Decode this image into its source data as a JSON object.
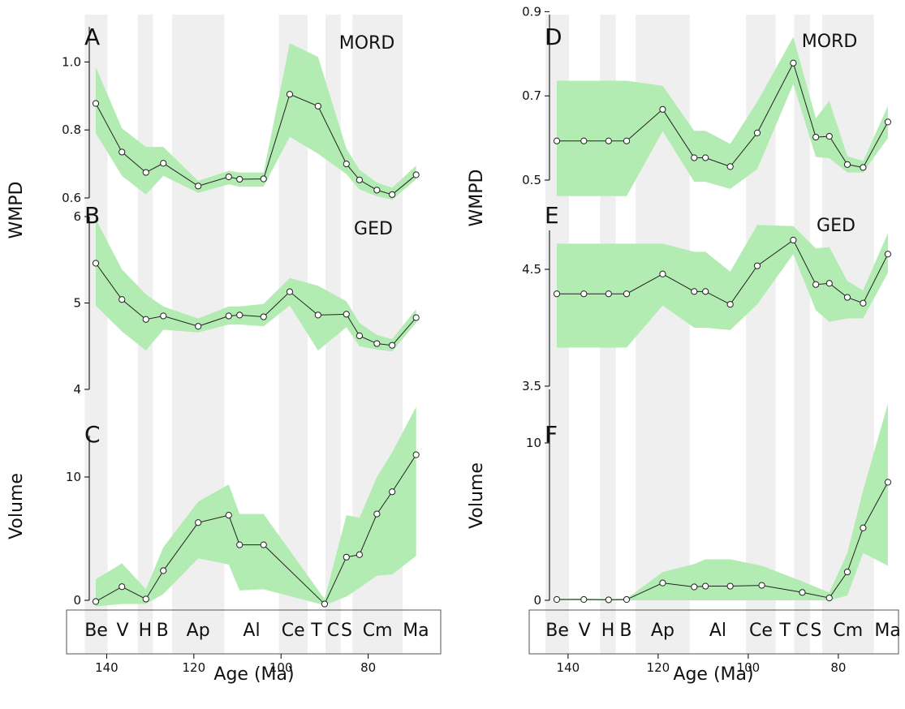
{
  "stages": [
    {
      "label": "Be",
      "start": 145,
      "end": 139.8,
      "shade": true
    },
    {
      "label": "V",
      "start": 139.8,
      "end": 132.9,
      "shade": false
    },
    {
      "label": "H",
      "start": 132.9,
      "end": 129.4,
      "shade": true
    },
    {
      "label": "B",
      "start": 129.4,
      "end": 125.0,
      "shade": false
    },
    {
      "label": "Ap",
      "start": 125.0,
      "end": 113.0,
      "shade": true
    },
    {
      "label": "Al",
      "start": 113.0,
      "end": 100.5,
      "shade": false
    },
    {
      "label": "Ce",
      "start": 100.5,
      "end": 93.9,
      "shade": true
    },
    {
      "label": "T",
      "start": 93.9,
      "end": 89.8,
      "shade": false
    },
    {
      "label": "C",
      "start": 89.8,
      "end": 86.3,
      "shade": true
    },
    {
      "label": "S",
      "start": 86.3,
      "end": 83.6,
      "shade": false
    },
    {
      "label": "Cm",
      "start": 83.6,
      "end": 72.1,
      "shade": true
    },
    {
      "label": "Ma",
      "start": 72.1,
      "end": 66.0,
      "shade": false
    }
  ],
  "colors": {
    "band": "#b3ecb3",
    "shade": "#efefef",
    "line": "#222222"
  },
  "chart_data": [
    {
      "id": "A",
      "type": "line",
      "panel_letter": "A",
      "annotation": "MORD",
      "ylim": [
        0.6,
        1.1
      ],
      "yticks": [
        "0.6",
        "0.8",
        "1.0"
      ],
      "x": [
        142.5,
        136.5,
        131,
        127,
        119,
        112,
        109.5,
        104,
        98,
        91.5,
        85,
        82,
        78,
        74.5,
        69
      ],
      "y": [
        0.878,
        0.735,
        0.675,
        0.702,
        0.635,
        0.662,
        0.655,
        0.656,
        0.905,
        0.87,
        0.7,
        0.653,
        0.623,
        0.61,
        0.668
      ],
      "lower": [
        0.79,
        0.665,
        0.61,
        0.665,
        0.615,
        0.64,
        0.633,
        0.633,
        0.78,
        0.73,
        0.67,
        0.625,
        0.605,
        0.595,
        0.655
      ],
      "upper": [
        0.985,
        0.805,
        0.75,
        0.75,
        0.65,
        0.68,
        0.675,
        0.675,
        1.055,
        1.015,
        0.745,
        0.683,
        0.645,
        0.63,
        0.695
      ]
    },
    {
      "id": "B",
      "type": "line",
      "panel_letter": "B",
      "annotation": "GED",
      "ylim": [
        4,
        6
      ],
      "yticks": [
        "4",
        "5",
        "6"
      ],
      "x": [
        142.5,
        136.5,
        131,
        127,
        119,
        112,
        109.5,
        104,
        98,
        91.5,
        85,
        82,
        78,
        74.5,
        69
      ],
      "y": [
        5.46,
        5.04,
        4.81,
        4.85,
        4.73,
        4.85,
        4.86,
        4.84,
        5.13,
        4.86,
        4.87,
        4.62,
        4.53,
        4.51,
        4.83
      ],
      "lower": [
        4.97,
        4.67,
        4.45,
        4.69,
        4.66,
        4.75,
        4.75,
        4.73,
        4.97,
        4.45,
        4.72,
        4.5,
        4.46,
        4.44,
        4.77
      ],
      "upper": [
        5.97,
        5.39,
        5.1,
        4.96,
        4.82,
        4.96,
        4.96,
        4.99,
        5.29,
        5.2,
        5.02,
        4.77,
        4.63,
        4.58,
        4.93
      ]
    },
    {
      "id": "C",
      "type": "line",
      "panel_letter": "C",
      "annotation": "",
      "ylim": [
        -0.5,
        13.5
      ],
      "yticks": [
        "0",
        "10"
      ],
      "x": [
        142.5,
        136.5,
        131,
        127,
        119,
        112,
        109.5,
        104,
        90,
        85,
        82,
        78,
        74.5,
        69
      ],
      "y": [
        -0.1,
        1.1,
        0.1,
        2.4,
        6.3,
        6.9,
        4.5,
        4.5,
        -0.3,
        3.5,
        3.7,
        7.0,
        8.8,
        11.8
      ],
      "lower": [
        -0.5,
        -0.3,
        -0.3,
        0.5,
        3.4,
        2.9,
        0.8,
        0.9,
        -0.4,
        0.3,
        1.0,
        2.0,
        2.1,
        3.6
      ],
      "upper": [
        1.7,
        3.0,
        0.9,
        4.3,
        8.0,
        9.4,
        7.0,
        7.0,
        0.1,
        6.9,
        6.7,
        10.0,
        12.0,
        15.7
      ]
    },
    {
      "id": "D",
      "type": "line",
      "panel_letter": "D",
      "annotation": "MORD",
      "ylim": [
        0.46,
        0.9
      ],
      "yticks": [
        "0.5",
        "0.7",
        "0.9"
      ],
      "x": [
        142.5,
        136.5,
        131,
        127,
        119,
        112,
        109.5,
        104,
        98,
        90,
        85,
        82,
        78,
        74.5,
        69
      ],
      "y": [
        0.593,
        0.593,
        0.593,
        0.593,
        0.668,
        0.553,
        0.553,
        0.532,
        0.612,
        0.778,
        0.602,
        0.604,
        0.537,
        0.53,
        0.638
      ],
      "lower": [
        0.462,
        0.462,
        0.462,
        0.462,
        0.616,
        0.496,
        0.496,
        0.479,
        0.526,
        0.728,
        0.555,
        0.552,
        0.518,
        0.518,
        0.6
      ],
      "upper": [
        0.736,
        0.736,
        0.736,
        0.736,
        0.724,
        0.617,
        0.617,
        0.586,
        0.686,
        0.84,
        0.647,
        0.688,
        0.557,
        0.545,
        0.676
      ]
    },
    {
      "id": "E",
      "type": "line",
      "panel_letter": "E",
      "annotation": "GED",
      "ylim": [
        3.5,
        5.0
      ],
      "yticks": [
        "3.5",
        "4.5"
      ],
      "x": [
        142.5,
        136.5,
        131,
        127,
        119,
        112,
        109.5,
        104,
        98,
        90,
        85,
        82,
        78,
        74.5,
        69
      ],
      "y": [
        4.29,
        4.29,
        4.29,
        4.29,
        4.46,
        4.31,
        4.31,
        4.2,
        4.53,
        4.75,
        4.37,
        4.38,
        4.26,
        4.21,
        4.63
      ],
      "lower": [
        3.83,
        3.83,
        3.83,
        3.83,
        4.19,
        4.0,
        4.0,
        3.98,
        4.2,
        4.63,
        4.15,
        4.05,
        4.08,
        4.08,
        4.47
      ],
      "upper": [
        4.72,
        4.72,
        4.72,
        4.72,
        4.72,
        4.65,
        4.65,
        4.48,
        4.88,
        4.87,
        4.68,
        4.69,
        4.4,
        4.32,
        4.81
      ]
    },
    {
      "id": "F",
      "type": "line",
      "panel_letter": "F",
      "annotation": "",
      "ylim": [
        -0.3,
        12.3
      ],
      "yticks": [
        "0",
        "10"
      ],
      "x": [
        142.5,
        136.5,
        131,
        127,
        119,
        112,
        109.5,
        104,
        97,
        88,
        82,
        78,
        74.5,
        69
      ],
      "y": [
        0.05,
        0.05,
        0.03,
        0.05,
        1.1,
        0.85,
        0.9,
        0.9,
        0.95,
        0.5,
        0.15,
        1.8,
        4.6,
        7.5
      ],
      "lower": [
        0.0,
        0.0,
        0.0,
        0.0,
        0.0,
        0.0,
        0.0,
        0.0,
        0.0,
        0.0,
        0.0,
        0.3,
        3.0,
        2.2
      ],
      "upper": [
        0.1,
        0.1,
        0.1,
        0.1,
        1.8,
        2.3,
        2.6,
        2.6,
        2.2,
        1.2,
        0.5,
        3.0,
        7.0,
        12.5
      ]
    }
  ],
  "axes": {
    "wmpd_label": "WMPD",
    "volume_label": "Volume",
    "xlabel": "Age (Ma)",
    "xticks": [
      "140",
      "120",
      "100",
      "80"
    ]
  }
}
